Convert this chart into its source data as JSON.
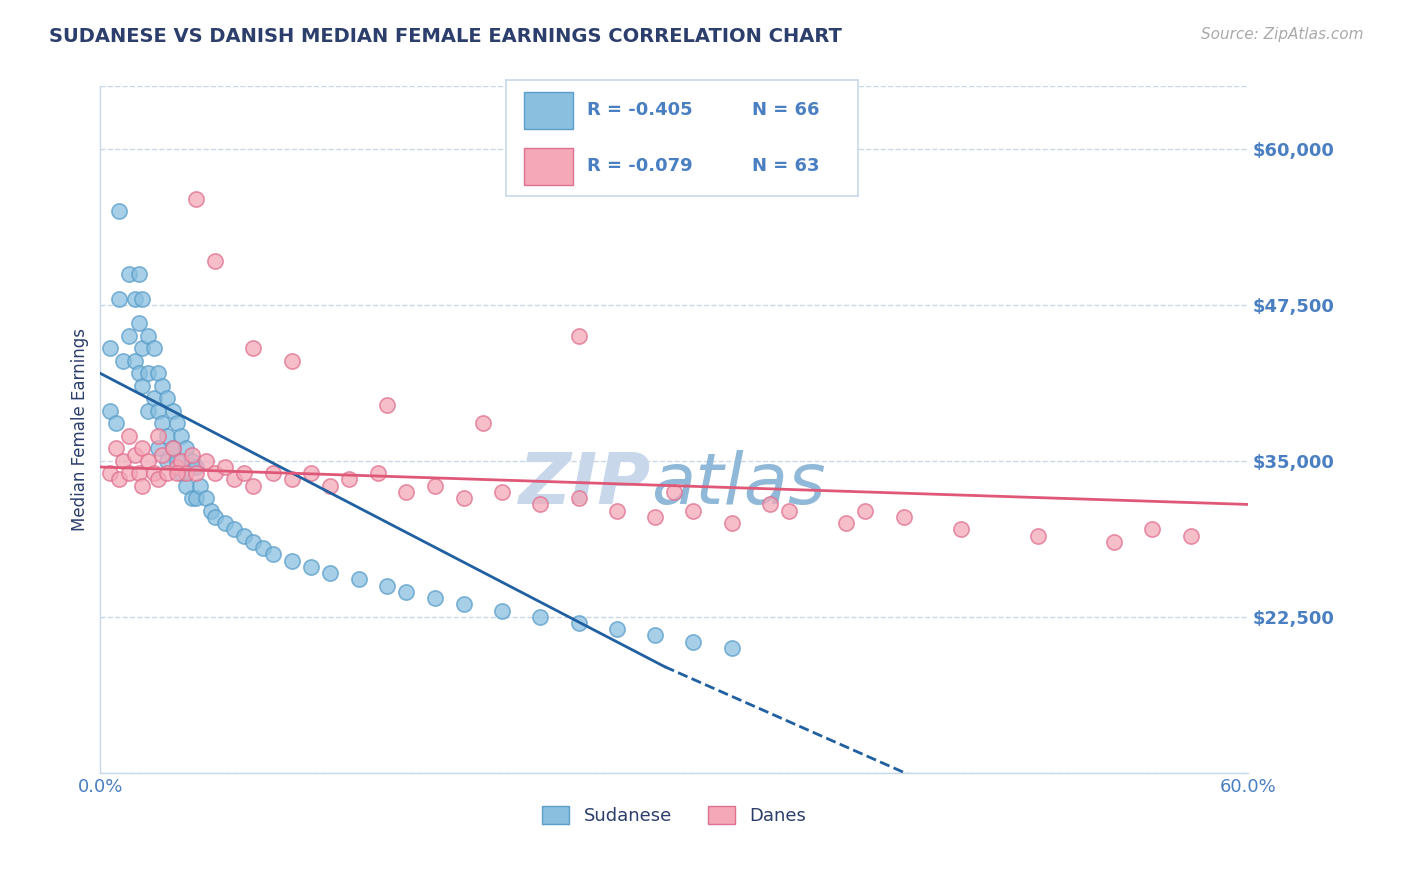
{
  "title": "SUDANESE VS DANISH MEDIAN FEMALE EARNINGS CORRELATION CHART",
  "source": "Source: ZipAtlas.com",
  "ylabel": "Median Female Earnings",
  "xlim": [
    0.0,
    0.6
  ],
  "ylim": [
    10000,
    65000
  ],
  "yticks": [
    22500,
    35000,
    47500,
    60000
  ],
  "ytick_labels": [
    "$22,500",
    "$35,000",
    "$47,500",
    "$60,000"
  ],
  "xticks": [
    0.0,
    0.1,
    0.2,
    0.3,
    0.4,
    0.5,
    0.6
  ],
  "xtick_labels": [
    "0.0%",
    "",
    "",
    "",
    "",
    "",
    "60.0%"
  ],
  "sudanese_R": -0.405,
  "sudanese_N": 66,
  "danes_R": -0.079,
  "danes_N": 63,
  "blue_color": "#8abfe0",
  "pink_color": "#f4a8b8",
  "blue_edge_color": "#5a9ec9",
  "pink_edge_color": "#e07090",
  "blue_line_color": "#2060a0",
  "pink_line_color": "#e05878",
  "title_color": "#2c3e6b",
  "tick_color": "#4a7fc1",
  "legend_r_color": "#4a7fc1",
  "grid_color": "#c8d8e8",
  "watermark_color_zip": "#c8d8ea",
  "watermark_color_atlas": "#90b8d8",
  "sudanese_x": [
    0.005,
    0.005,
    0.008,
    0.01,
    0.01,
    0.012,
    0.015,
    0.015,
    0.018,
    0.018,
    0.02,
    0.02,
    0.02,
    0.022,
    0.022,
    0.022,
    0.025,
    0.025,
    0.025,
    0.028,
    0.028,
    0.03,
    0.03,
    0.03,
    0.032,
    0.032,
    0.035,
    0.035,
    0.035,
    0.038,
    0.038,
    0.04,
    0.04,
    0.042,
    0.042,
    0.045,
    0.045,
    0.048,
    0.048,
    0.05,
    0.05,
    0.052,
    0.055,
    0.058,
    0.06,
    0.065,
    0.07,
    0.075,
    0.08,
    0.085,
    0.09,
    0.1,
    0.11,
    0.12,
    0.135,
    0.15,
    0.16,
    0.175,
    0.19,
    0.21,
    0.23,
    0.25,
    0.27,
    0.29,
    0.31,
    0.33
  ],
  "sudanese_y": [
    44000,
    39000,
    38000,
    55000,
    48000,
    43000,
    50000,
    45000,
    48000,
    43000,
    50000,
    46000,
    42000,
    48000,
    44000,
    41000,
    45000,
    42000,
    39000,
    44000,
    40000,
    42000,
    39000,
    36000,
    41000,
    38000,
    40000,
    37000,
    35000,
    39000,
    36000,
    38000,
    35000,
    37000,
    34000,
    36000,
    33000,
    35000,
    32000,
    34500,
    32000,
    33000,
    32000,
    31000,
    30500,
    30000,
    29500,
    29000,
    28500,
    28000,
    27500,
    27000,
    26500,
    26000,
    25500,
    25000,
    24500,
    24000,
    23500,
    23000,
    22500,
    22000,
    21500,
    21000,
    20500,
    20000
  ],
  "danes_x": [
    0.005,
    0.008,
    0.01,
    0.012,
    0.015,
    0.015,
    0.018,
    0.02,
    0.022,
    0.022,
    0.025,
    0.028,
    0.03,
    0.03,
    0.032,
    0.035,
    0.038,
    0.04,
    0.042,
    0.045,
    0.048,
    0.05,
    0.055,
    0.06,
    0.065,
    0.07,
    0.075,
    0.08,
    0.09,
    0.1,
    0.11,
    0.12,
    0.13,
    0.145,
    0.16,
    0.175,
    0.19,
    0.21,
    0.23,
    0.25,
    0.27,
    0.29,
    0.31,
    0.33,
    0.36,
    0.39,
    0.42,
    0.45,
    0.49,
    0.53,
    0.57,
    0.25,
    0.3,
    0.35,
    0.4,
    0.2,
    0.15,
    0.1,
    0.08,
    0.06,
    0.05,
    0.04,
    0.55
  ],
  "danes_y": [
    34000,
    36000,
    33500,
    35000,
    34000,
    37000,
    35500,
    34000,
    36000,
    33000,
    35000,
    34000,
    37000,
    33500,
    35500,
    34000,
    36000,
    34500,
    35000,
    34000,
    35500,
    34000,
    35000,
    34000,
    34500,
    33500,
    34000,
    33000,
    34000,
    33500,
    34000,
    33000,
    33500,
    34000,
    32500,
    33000,
    32000,
    32500,
    31500,
    32000,
    31000,
    30500,
    31000,
    30000,
    31000,
    30000,
    30500,
    29500,
    29000,
    28500,
    29000,
    45000,
    32500,
    31500,
    31000,
    38000,
    39500,
    43000,
    44000,
    51000,
    56000,
    34000,
    29500
  ]
}
